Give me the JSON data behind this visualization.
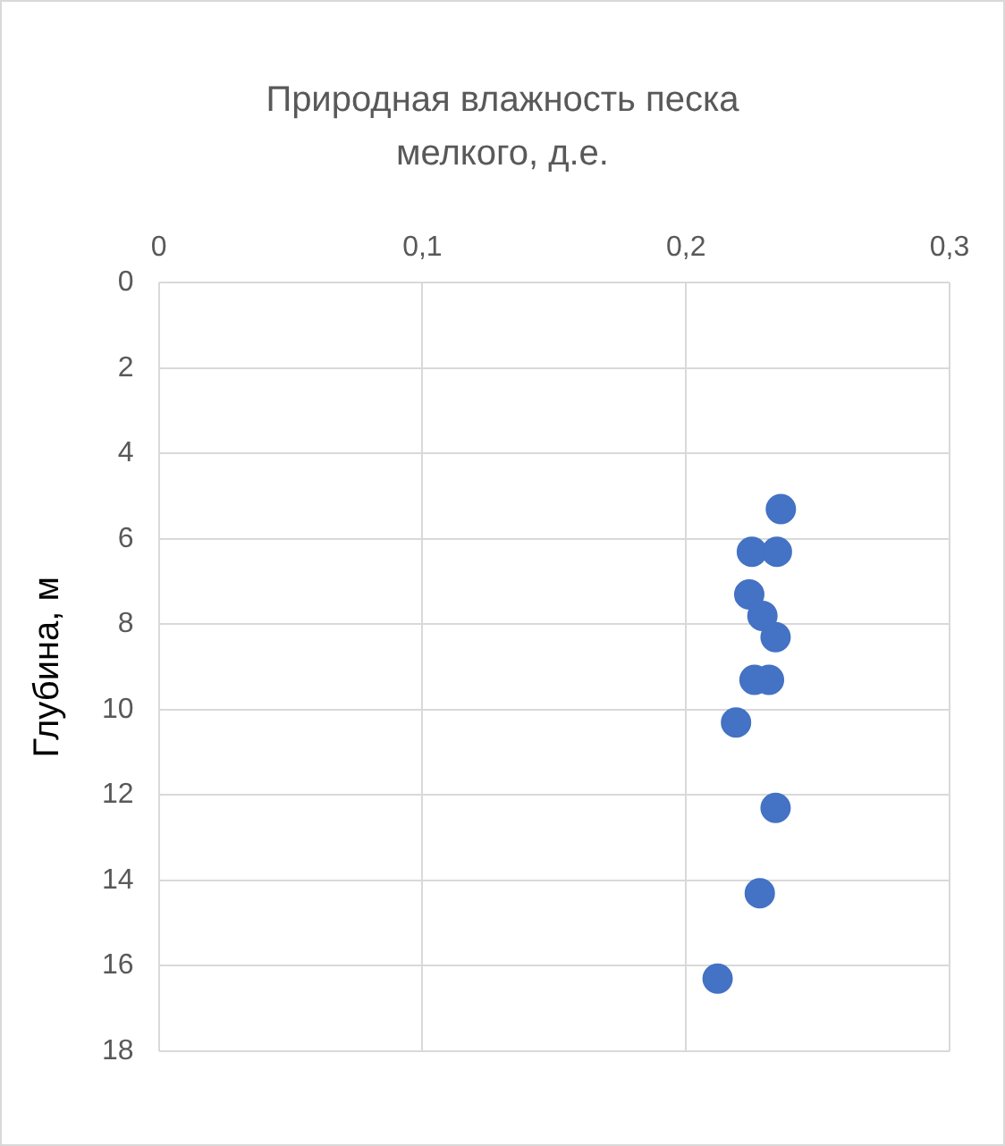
{
  "chart_data": {
    "type": "scatter",
    "title": "Природная влажность песка мелкого, д.е.",
    "ylabel": "Глубина, м",
    "x": [
      0.236,
      0.225,
      0.2345,
      0.224,
      0.229,
      0.234,
      0.226,
      0.2315,
      0.219,
      0.234,
      0.228,
      0.212
    ],
    "values": [
      5.3,
      6.3,
      6.3,
      7.3,
      7.8,
      8.3,
      9.3,
      9.3,
      10.3,
      12.3,
      14.3,
      16.3
    ],
    "color": "#4472c4",
    "marker": "circle",
    "xlim": [
      0,
      0.3
    ],
    "xticks": [
      0,
      {
        "value": 0.1,
        "label": "0,1"
      },
      {
        "value": 0.2,
        "label": "0,2"
      },
      {
        "value": 0.3,
        "label": "0,3"
      }
    ],
    "ylim": [
      18,
      0
    ],
    "yticks": [
      0,
      2,
      4,
      6,
      8,
      10,
      12,
      14,
      16,
      18
    ],
    "grid": true,
    "legend": false
  }
}
